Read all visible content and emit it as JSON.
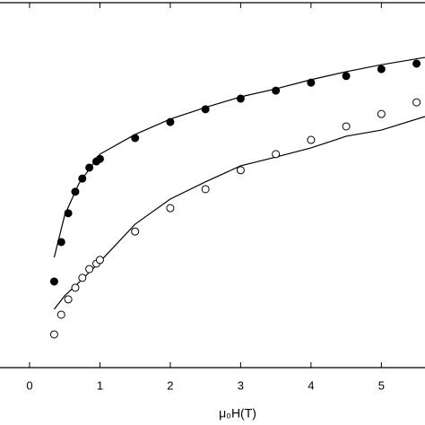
{
  "chart_data": {
    "type": "scatter",
    "x_label": "μ₀H(T)",
    "xlim": [
      -0.42,
      5.62
    ],
    "ylim": [
      0,
      100
    ],
    "xticks": [
      0,
      1,
      2,
      3,
      4,
      5
    ],
    "series": [
      {
        "color": "#000000",
        "filled": true,
        "x": [
          0.35,
          0.45,
          0.55,
          0.65,
          0.75,
          0.85,
          0.95,
          1.0,
          1.5,
          2,
          2.5,
          3,
          3.5,
          4,
          4.5,
          5,
          5.5
        ],
        "values": [
          23.6,
          34.4,
          42.3,
          48.2,
          51.8,
          54.8,
          56.5,
          57.2,
          62.9,
          67.3,
          70.8,
          73.7,
          75.9,
          78.1,
          79.9,
          81.8,
          83.3
        ]
      },
      {
        "color": "#000000",
        "filled": false,
        "x": [
          0.35,
          0.45,
          0.55,
          0.65,
          0.75,
          0.85,
          0.95,
          1.0,
          1.5,
          2,
          2.5,
          3,
          3.5,
          4,
          4.5,
          5,
          5.5
        ],
        "values": [
          9.1,
          14.5,
          18.7,
          21.9,
          24.6,
          27.0,
          28.5,
          29.5,
          37.3,
          43.7,
          48.9,
          54.1,
          58.5,
          62.4,
          66.1,
          69.5,
          72.7
        ]
      }
    ],
    "fits": [
      {
        "color": "#000000",
        "x": [
          0.35,
          0.5,
          0.7,
          1,
          1.5,
          2,
          2.5,
          3,
          3.5,
          4,
          4.5,
          5,
          5.62
        ],
        "values": [
          30.2,
          41.8,
          50.4,
          58.5,
          63.9,
          68.1,
          71.3,
          74.2,
          76.4,
          78.9,
          81.1,
          83.0,
          85.0
        ]
      },
      {
        "color": "#000000",
        "x": [
          0.35,
          0.5,
          0.7,
          1,
          1.5,
          2,
          2.5,
          3,
          3.5,
          4,
          4.5,
          5,
          5.62
        ],
        "values": [
          16.0,
          19.7,
          23.3,
          29.0,
          39.3,
          46.2,
          50.9,
          55.3,
          57.7,
          60.2,
          63.4,
          65.1,
          68.8
        ]
      }
    ]
  }
}
